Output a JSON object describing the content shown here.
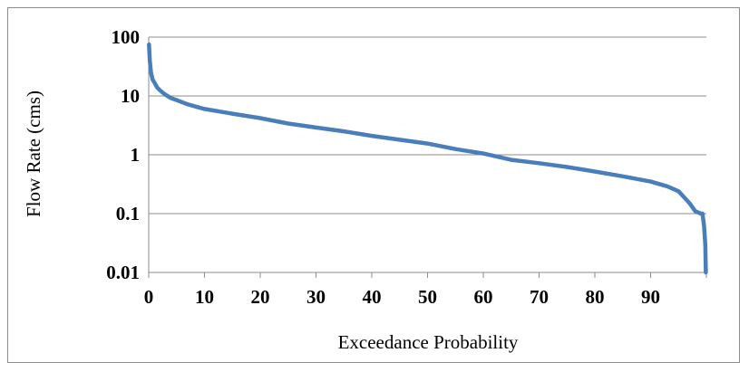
{
  "chart_data": {
    "type": "line",
    "title": "",
    "xlabel": "Exceedance Probability",
    "ylabel": "Flow Rate (cms)",
    "xlim": [
      0,
      100
    ],
    "ylim": [
      0.01,
      100
    ],
    "yscale": "log",
    "grid": "horizontal",
    "x_ticks": [
      "0",
      "10",
      "20",
      "30",
      "40",
      "50",
      "60",
      "70",
      "80",
      "90"
    ],
    "x_tick_values": [
      0,
      10,
      20,
      30,
      40,
      50,
      60,
      70,
      80,
      90
    ],
    "y_ticks": [
      "0.01",
      "0.1",
      "1",
      "10",
      "100"
    ],
    "y_tick_values": [
      0.01,
      0.1,
      1,
      10,
      100
    ],
    "series": [
      {
        "color": "#4a7ebb",
        "x": [
          0.05,
          0.2,
          0.4,
          0.7,
          1,
          1.5,
          2,
          3,
          4,
          5,
          7,
          10,
          15,
          20,
          25,
          30,
          35,
          40,
          45,
          50,
          55,
          60,
          65,
          70,
          75,
          80,
          85,
          90,
          93,
          95,
          96,
          97,
          98,
          99,
          99.3,
          99.6,
          99.8,
          99.9
        ],
        "y": [
          75,
          40,
          25,
          19,
          17,
          14,
          12.5,
          10.5,
          9.2,
          8.5,
          7.2,
          6,
          5,
          4.2,
          3.4,
          2.9,
          2.5,
          2.1,
          1.8,
          1.55,
          1.25,
          1.05,
          0.82,
          0.72,
          0.62,
          0.52,
          0.43,
          0.35,
          0.29,
          0.24,
          0.19,
          0.15,
          0.11,
          0.1,
          0.1,
          0.06,
          0.03,
          0.01
        ]
      }
    ]
  }
}
